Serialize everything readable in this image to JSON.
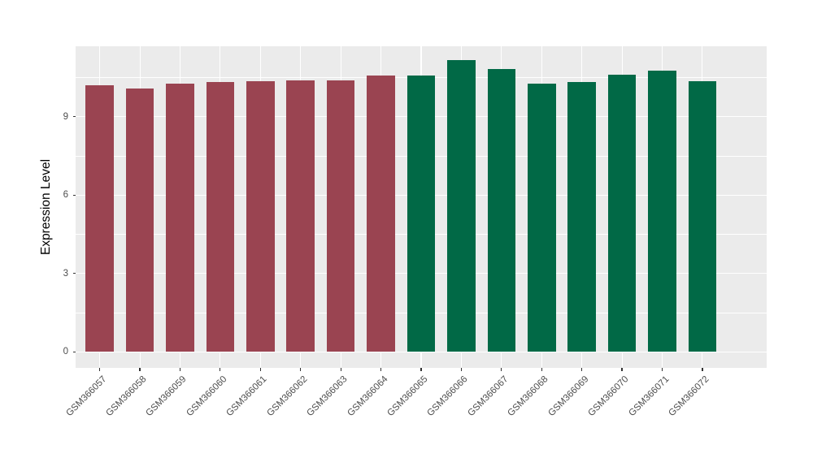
{
  "chart_data": {
    "type": "bar",
    "title": "",
    "xlabel": "",
    "ylabel": "Expression Level",
    "categories": [
      "GSM366057",
      "GSM366058",
      "GSM366059",
      "GSM366060",
      "GSM366061",
      "GSM366062",
      "GSM366063",
      "GSM366064",
      "GSM366065",
      "GSM366066",
      "GSM366067",
      "GSM366068",
      "GSM366069",
      "GSM366070",
      "GSM366071",
      "GSM366072"
    ],
    "values": [
      10.2,
      10.07,
      10.27,
      10.33,
      10.35,
      10.38,
      10.38,
      10.56,
      10.57,
      11.15,
      10.83,
      10.27,
      10.33,
      10.6,
      10.76,
      10.35
    ],
    "bar_colors": [
      "#9A4451",
      "#9A4451",
      "#9A4451",
      "#9A4451",
      "#9A4451",
      "#9A4451",
      "#9A4451",
      "#9A4451",
      "#016946",
      "#016946",
      "#016946",
      "#016946",
      "#016946",
      "#016946",
      "#016946",
      "#016946"
    ],
    "group_colors": {
      "left_group": "#9A4451",
      "right_group": "#016946"
    },
    "y_ticks": [
      "0",
      "3",
      "6",
      "9"
    ],
    "y_tick_values": [
      0,
      3,
      6,
      9
    ],
    "y_minor_tick_values": [
      1.5,
      4.5,
      7.5,
      10.5
    ],
    "ylim": [
      -0.61,
      11.69
    ],
    "grid": true,
    "legend_position": "none",
    "panel_background": "#EBEBEB",
    "grid_color": "#FFFFFF",
    "axis_text_color": "#4D4D4D",
    "axis_title_color": "#000000",
    "x_label_angle_deg": 45
  }
}
